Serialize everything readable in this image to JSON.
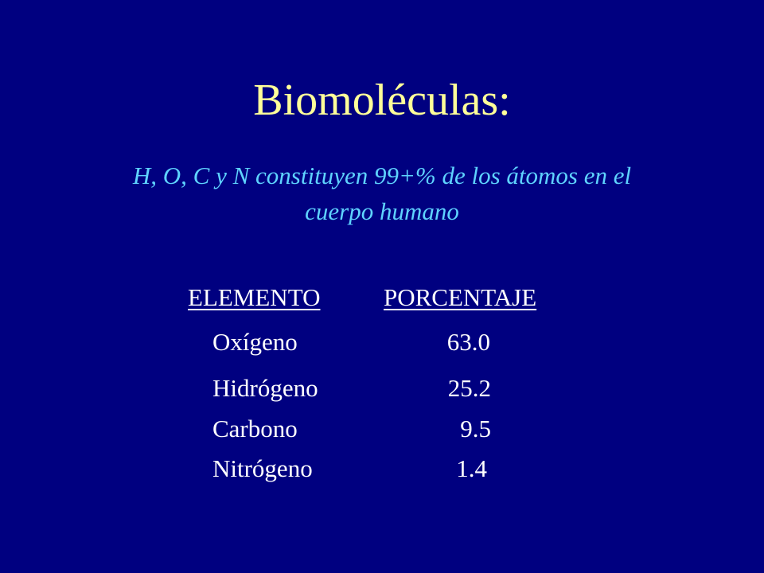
{
  "slide": {
    "title": "Biomoléculas:",
    "subtitle_line1": "H, O, C y N constituyen 99+% de los átomos en el",
    "subtitle_line2": "cuerpo humano",
    "table": {
      "headers": [
        "ELEMENTO",
        "PORCENTAJE"
      ],
      "rows": [
        [
          "Oxígeno",
          "63.0"
        ],
        [
          "Hidrógeno",
          "25.2"
        ],
        [
          "Carbono",
          "9.5"
        ],
        [
          "Nitrógeno",
          "1.4"
        ]
      ]
    },
    "colors": {
      "background": "#000080",
      "title": "#FFFF99",
      "subtitle": "#5FD3FF",
      "table_text": "#FFFFFF"
    }
  }
}
